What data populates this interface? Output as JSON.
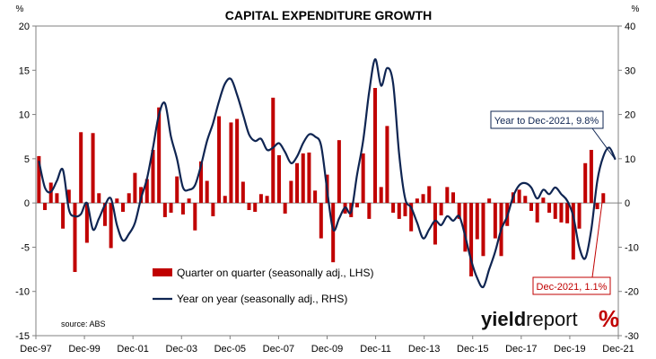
{
  "chart_data": {
    "type": "bar+line",
    "title": "CAPITAL EXPENDITURE GROWTH",
    "left_unit": "%",
    "right_unit": "%",
    "ylim_left": [
      -15,
      20
    ],
    "ylim_right": [
      -30,
      40
    ],
    "left_ticks": [
      20,
      15,
      10,
      5,
      0,
      -5,
      -10,
      -15
    ],
    "right_ticks": [
      40,
      30,
      20,
      10,
      0,
      -10,
      -20,
      -30
    ],
    "x_tick_labels": [
      "Dec-97",
      "Dec-99",
      "Dec-01",
      "Dec-03",
      "Dec-05",
      "Dec-07",
      "Dec-09",
      "Dec-11",
      "Dec-13",
      "Dec-15",
      "Dec-17",
      "Dec-19",
      "Dec-21"
    ],
    "x_start": "Dec-97",
    "x_end": "Dec-21",
    "series": [
      {
        "name": "Quarter on quarter (seasonally adj., LHS)",
        "type": "bar",
        "axis": "left",
        "color": "#c00000",
        "values": [
          5.3,
          -0.8,
          2.3,
          1.1,
          -2.9,
          1.5,
          -7.8,
          8.0,
          -4.5,
          7.9,
          1.1,
          -2.6,
          -5.1,
          0.5,
          -1.0,
          1.1,
          3.4,
          1.8,
          2.7,
          6.0,
          10.8,
          -1.6,
          -1.1,
          3.0,
          -1.3,
          0.5,
          -3.1,
          4.7,
          2.5,
          -1.5,
          9.8,
          0.8,
          9.1,
          9.5,
          2.4,
          -0.8,
          -1.0,
          1.0,
          0.8,
          11.9,
          5.4,
          -1.2,
          2.5,
          4.5,
          5.6,
          5.7,
          1.4,
          -4.0,
          3.2,
          -6.7,
          7.1,
          -1.2,
          -1.6,
          -0.5,
          5.6,
          -1.8,
          13.0,
          1.8,
          8.7,
          -1.1,
          -1.8,
          -1.5,
          -3.2,
          0.5,
          1.0,
          1.9,
          -4.7,
          -1.4,
          1.8,
          1.2,
          -1.8,
          -5.5,
          -8.3,
          -4.1,
          -6.0,
          0.5,
          -4.0,
          -6.0,
          -2.6,
          1.2,
          1.5,
          0.8,
          -0.9,
          -2.2,
          0.6,
          -1.1,
          -1.8,
          -2.2,
          -2.3,
          -6.4,
          -2.9,
          4.5,
          6.0,
          -0.7,
          1.1
        ],
        "x_start_index": 0
      },
      {
        "name": "Year on year (seasonally adj., RHS)",
        "type": "line",
        "axis": "right",
        "color": "#0f2552",
        "values": [
          9.5,
          3.5,
          2.5,
          5.0,
          7.5,
          -1.5,
          -3.0,
          -2.5,
          0.0,
          -6.0,
          -3.5,
          -0.5,
          1.0,
          -5.0,
          -8.5,
          -7.0,
          -4.5,
          1.0,
          5.5,
          12.5,
          20.0,
          22.5,
          15.0,
          10.0,
          3.5,
          3.0,
          4.0,
          8.5,
          14.0,
          18.0,
          23.0,
          27.0,
          28.0,
          24.5,
          20.0,
          15.5,
          14.0,
          14.5,
          12.0,
          12.5,
          13.5,
          11.5,
          9.0,
          10.5,
          13.5,
          15.5,
          15.0,
          13.0,
          3.0,
          -6.0,
          -3.5,
          -1.0,
          -2.0,
          6.5,
          14.0,
          25.0,
          32.5,
          26.5,
          30.5,
          27.0,
          11.0,
          1.0,
          -1.0,
          -4.5,
          -8.0,
          -6.0,
          -4.0,
          -5.0,
          -3.0,
          -4.0,
          -3.0,
          -7.5,
          -13.0,
          -17.0,
          -19.0,
          -15.0,
          -11.0,
          -6.0,
          -3.0,
          1.5,
          4.0,
          4.5,
          3.5,
          1.0,
          3.0,
          2.0,
          3.5,
          2.0,
          0.5,
          -3.0,
          -10.0,
          -12.5,
          -6.0,
          5.0,
          10.5,
          12.5,
          9.8
        ],
        "x_start_index": 0
      }
    ],
    "legend": [
      {
        "label": "Quarter on quarter (seasonally adj., LHS)",
        "kind": "bar",
        "color": "#c00000"
      },
      {
        "label": "Year on year (seasonally adj., RHS)",
        "kind": "line",
        "color": "#0f2552"
      }
    ],
    "annotations": [
      {
        "text": "Year to Dec-2021, 9.8%",
        "color": "#0f2552",
        "series": "line"
      },
      {
        "text": "Dec-2021, 1.1%",
        "color": "#c00000",
        "series": "bar"
      }
    ],
    "source": "source: ABS",
    "logo": {
      "part1": "yield",
      "part2": "report",
      "symbol": "%"
    }
  }
}
